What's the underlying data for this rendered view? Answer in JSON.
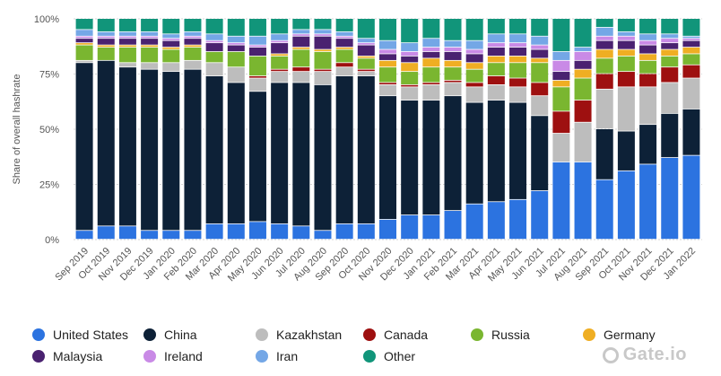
{
  "chart_data": {
    "type": "bar",
    "stacked": true,
    "ylabel": "Share of overall hashrate",
    "ylim": [
      0,
      100
    ],
    "yticks": [
      "0%",
      "25%",
      "50%",
      "75%",
      "100%"
    ],
    "grid": true,
    "legend_position": "bottom",
    "categories": [
      "Sep 2019",
      "Oct 2019",
      "Nov 2019",
      "Dec 2019",
      "Jan 2020",
      "Feb 2020",
      "Mar 2020",
      "Apr 2020",
      "May 2020",
      "Jun 2020",
      "Jul 2020",
      "Aug 2020",
      "Sep 2020",
      "Oct 2020",
      "Nov 2020",
      "Dec 2020",
      "Jan 2021",
      "Feb 2021",
      "Mar 2021",
      "Apr 2021",
      "May 2021",
      "Jun 2021",
      "Jul 2021",
      "Aug 2021",
      "Sep 2021",
      "Oct 2021",
      "Nov 2021",
      "Dec 2021",
      "Jan 2022"
    ],
    "x_tick_labels": [
      "Sep 2019",
      "Oct 2019",
      "Nov 2019",
      "Dec 2019",
      "Jan 2020",
      "Feb 2020",
      "Mar 2020",
      "Apr 2020",
      "May 2020",
      "Jun 2020",
      "Jul 2020",
      "Aug 2020",
      "Sep 2020",
      "Oct 2020",
      "Nov 2020",
      "Dec 2020",
      "Jan 2021",
      "Feb 2021",
      "Mar 2021",
      "Apr 2021",
      "May 2021",
      "Jun 2021",
      "Jul 2021",
      "Aug 2021",
      "Sep 2021",
      "Oct 2021",
      "Nov 2021",
      "Dec 2021",
      "Jan 2022"
    ],
    "series": [
      {
        "name": "United States",
        "color": "#2c73e0",
        "values": [
          4,
          6,
          6,
          4,
          4,
          4,
          7,
          7,
          8,
          7,
          6,
          4,
          7,
          7,
          9,
          11,
          11,
          13,
          16,
          17,
          18,
          22,
          35,
          35,
          27,
          31,
          34,
          37,
          38
        ]
      },
      {
        "name": "China",
        "color": "#0d2137",
        "values": [
          76,
          75,
          72,
          73,
          72,
          73,
          67,
          64,
          59,
          64,
          65,
          66,
          67,
          67,
          56,
          52,
          52,
          52,
          46,
          46,
          44,
          34,
          0,
          0,
          23,
          18,
          18,
          20,
          21
        ]
      },
      {
        "name": "Kazakhstan",
        "color": "#bdbdbd",
        "values": [
          1,
          0,
          2,
          3,
          4,
          4,
          6,
          7,
          6,
          5,
          5,
          6,
          4,
          2,
          5,
          6,
          7,
          6,
          7,
          7,
          7,
          9,
          13,
          18,
          18,
          20,
          17,
          14,
          14
        ]
      },
      {
        "name": "Canada",
        "color": "#9e1010",
        "values": [
          0,
          0,
          0,
          0,
          0,
          0,
          0,
          0,
          1,
          1,
          2,
          1,
          2,
          1,
          1,
          1,
          1,
          1,
          2,
          4,
          4,
          6,
          10,
          10,
          7,
          7,
          6,
          7,
          6
        ]
      },
      {
        "name": "Russia",
        "color": "#7ab630",
        "values": [
          7,
          6,
          7,
          7,
          6,
          6,
          5,
          7,
          9,
          6,
          8,
          8,
          6,
          5,
          7,
          6,
          7,
          6,
          6,
          6,
          7,
          9,
          11,
          10,
          7,
          7,
          6,
          5,
          5
        ]
      },
      {
        "name": "Germany",
        "color": "#efae23",
        "values": [
          1,
          1,
          1,
          1,
          1,
          1,
          0,
          0,
          0,
          1,
          1,
          1,
          1,
          1,
          3,
          4,
          4,
          3,
          3,
          3,
          3,
          2,
          3,
          4,
          4,
          3,
          3,
          3,
          3
        ]
      },
      {
        "name": "Malaysia",
        "color": "#4a2270",
        "values": [
          2,
          3,
          3,
          3,
          3,
          3,
          4,
          3,
          4,
          5,
          5,
          6,
          4,
          5,
          3,
          3,
          3,
          4,
          4,
          4,
          4,
          4,
          4,
          4,
          4,
          4,
          4,
          3,
          3
        ]
      },
      {
        "name": "Ireland",
        "color": "#c98ae6",
        "values": [
          1,
          1,
          1,
          1,
          1,
          1,
          1,
          1,
          1,
          1,
          1,
          1,
          1,
          1,
          2,
          2,
          2,
          2,
          2,
          2,
          2,
          2,
          5,
          4,
          2,
          2,
          2,
          2,
          1
        ]
      },
      {
        "name": "Iran",
        "color": "#74a7e6",
        "values": [
          3,
          2,
          2,
          2,
          2,
          2,
          3,
          3,
          4,
          3,
          2,
          2,
          2,
          2,
          4,
          4,
          4,
          3,
          4,
          4,
          4,
          4,
          4,
          2,
          4,
          2,
          3,
          2,
          1
        ]
      },
      {
        "name": "Other",
        "color": "#11957a",
        "values": [
          5,
          6,
          6,
          6,
          7,
          6,
          7,
          8,
          8,
          7,
          5,
          5,
          6,
          9,
          10,
          11,
          9,
          10,
          10,
          7,
          7,
          8,
          15,
          13,
          4,
          6,
          7,
          7,
          8
        ]
      }
    ]
  },
  "legend": {
    "items": [
      {
        "label": "United States",
        "color": "#2c73e0"
      },
      {
        "label": "China",
        "color": "#0d2137"
      },
      {
        "label": "Kazakhstan",
        "color": "#bdbdbd"
      },
      {
        "label": "Canada",
        "color": "#9e1010"
      },
      {
        "label": "Russia",
        "color": "#7ab630"
      },
      {
        "label": "Germany",
        "color": "#efae23"
      },
      {
        "label": "Malaysia",
        "color": "#4a2270"
      },
      {
        "label": "Ireland",
        "color": "#c98ae6"
      },
      {
        "label": "Iran",
        "color": "#74a7e6"
      },
      {
        "label": "Other",
        "color": "#11957a"
      }
    ]
  },
  "watermark": {
    "text": "Gate.io"
  }
}
